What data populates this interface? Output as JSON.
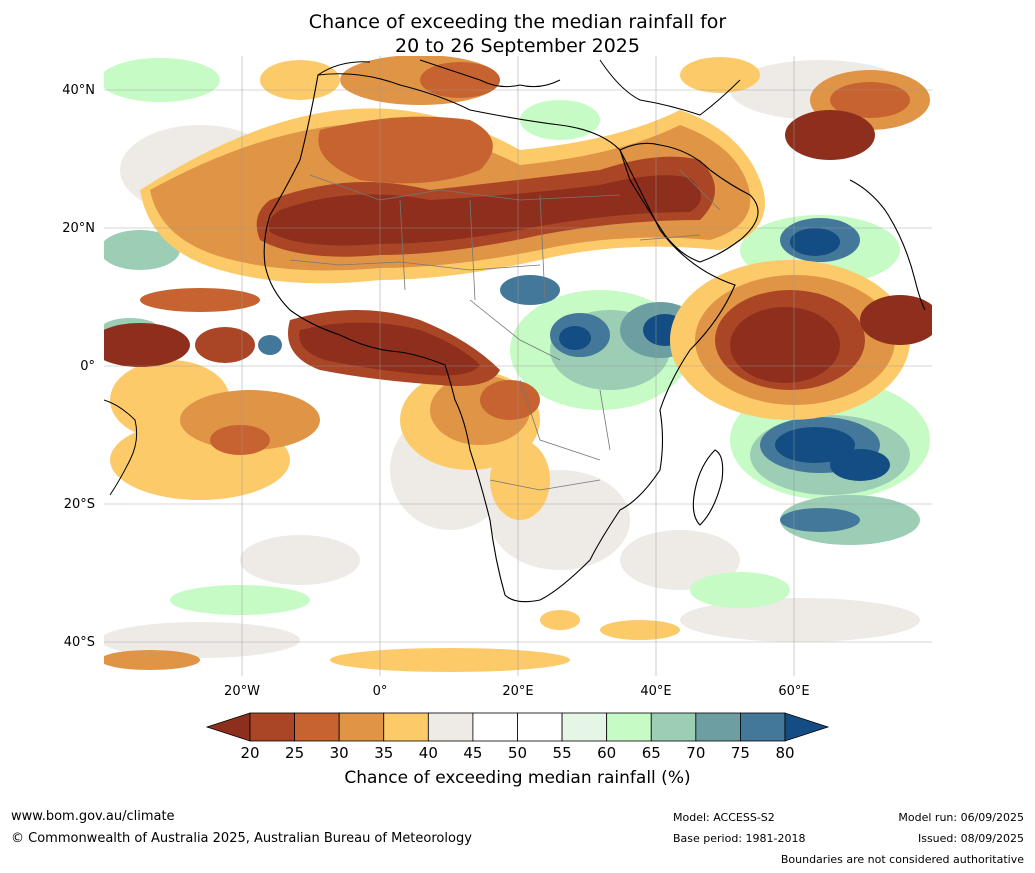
{
  "title": {
    "line1": "Chance of exceeding the median rainfall for",
    "line2": "20 to 26 September 2025"
  },
  "map": {
    "lat_labels": [
      "40°N",
      "20°N",
      "0°",
      "20°S",
      "40°S"
    ],
    "lon_labels": [
      "20°W",
      "0°",
      "20°E",
      "40°E",
      "60°E"
    ],
    "colors": {
      "c20": "#8e2f1d",
      "c25": "#aa4526",
      "c30": "#c66330",
      "c35": "#e09446",
      "c40": "#fdca6a",
      "c45": "#eeebe7",
      "c50": "#ffffff",
      "c55": "#ffffff",
      "c60": "#e6f6e6",
      "c65": "#c6fbc6",
      "c70": "#9ccdb5",
      "c75": "#6d9fa2",
      "c80": "#43789a",
      "c85": "#134d83"
    }
  },
  "colorbar": {
    "ticks": [
      "20",
      "25",
      "30",
      "35",
      "40",
      "45",
      "50",
      "55",
      "60",
      "65",
      "70",
      "75",
      "80"
    ],
    "label": "Chance of exceeding median rainfall (%)"
  },
  "footer": {
    "website": "www.bom.gov.au/climate",
    "copyright": "© Commonwealth of Australia 2025, Australian Bureau of Meteorology",
    "model": "Model: ACCESS-S2",
    "base_period": "Base period: 1981-2018",
    "model_run": "Model run: 06/09/2025",
    "issued": "Issued: 08/09/2025",
    "disclaimer": "Boundaries are not considered authoritative"
  }
}
